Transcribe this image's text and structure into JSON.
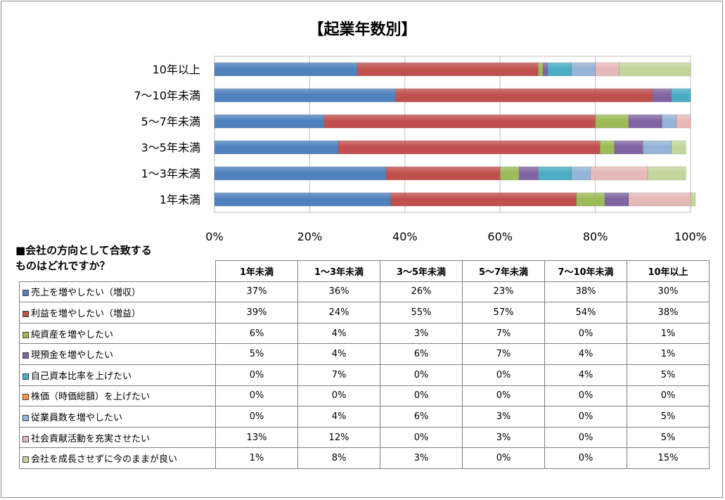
{
  "chart_data": {
    "type": "bar",
    "orientation": "horizontal",
    "stacked": true,
    "title": "【起業年数別】",
    "categories": [
      "1年未満",
      "1〜3年未満",
      "3〜5年未満",
      "5〜7年未満",
      "7〜10年未満",
      "10年以上"
    ],
    "x_ticks": [
      "0%",
      "20%",
      "40%",
      "60%",
      "80%",
      "100%"
    ],
    "xlim": [
      0,
      100
    ],
    "grid": true,
    "series": [
      {
        "name": "売上を増やしたい（増収）",
        "color": "#4f81bd",
        "values": [
          37,
          36,
          26,
          23,
          38,
          30
        ]
      },
      {
        "name": "利益を増やしたい（増益）",
        "color": "#c0504d",
        "values": [
          39,
          24,
          55,
          57,
          54,
          38
        ]
      },
      {
        "name": "純資産を増やしたい",
        "color": "#9bbb59",
        "values": [
          6,
          4,
          3,
          7,
          0,
          1
        ]
      },
      {
        "name": "現預金を増やしたい",
        "color": "#8064a2",
        "values": [
          5,
          4,
          6,
          7,
          4,
          1
        ]
      },
      {
        "name": "自己資本比率を上げたい",
        "color": "#4bacc6",
        "values": [
          0,
          7,
          0,
          0,
          4,
          5
        ]
      },
      {
        "name": "株価（時価総額）を上げたい",
        "color": "#f79646",
        "values": [
          0,
          0,
          0,
          0,
          0,
          0
        ]
      },
      {
        "name": "従業員数を増やしたい",
        "color": "#95b3d7",
        "values": [
          0,
          4,
          6,
          3,
          0,
          5
        ]
      },
      {
        "name": "社会貢献活動を充実させたい",
        "color": "#e6b9b8",
        "values": [
          13,
          12,
          0,
          3,
          0,
          5
        ]
      },
      {
        "name": "会社を成長させずに今のままが良い",
        "color": "#c3d69b",
        "values": [
          1,
          8,
          3,
          0,
          0,
          15
        ]
      }
    ]
  },
  "table": {
    "question_line1": "■会社の方向として合致する",
    "question_line2": "ものはどれですか？",
    "columns": [
      "1年未満",
      "1〜3年未満",
      "3〜5年未満",
      "5〜7年未満",
      "7〜10年未満",
      "10年以上"
    ],
    "rows": [
      {
        "label": "売上を増やしたい（増収）",
        "color": "#4f81bd",
        "values": [
          "37%",
          "36%",
          "26%",
          "23%",
          "38%",
          "30%"
        ]
      },
      {
        "label": "利益を増やしたい（増益）",
        "color": "#c0504d",
        "values": [
          "39%",
          "24%",
          "55%",
          "57%",
          "54%",
          "38%"
        ]
      },
      {
        "label": "純資産を増やしたい",
        "color": "#9bbb59",
        "values": [
          "6%",
          "4%",
          "3%",
          "7%",
          "0%",
          "1%"
        ]
      },
      {
        "label": "現預金を増やしたい",
        "color": "#8064a2",
        "values": [
          "5%",
          "4%",
          "6%",
          "7%",
          "4%",
          "1%"
        ]
      },
      {
        "label": "自己資本比率を上げたい",
        "color": "#4bacc6",
        "values": [
          "0%",
          "7%",
          "0%",
          "0%",
          "4%",
          "5%"
        ]
      },
      {
        "label": "株価（時価総額）を上げたい",
        "color": "#f79646",
        "values": [
          "0%",
          "0%",
          "0%",
          "0%",
          "0%",
          "0%"
        ]
      },
      {
        "label": "従業員数を増やしたい",
        "color": "#95b3d7",
        "values": [
          "0%",
          "4%",
          "6%",
          "3%",
          "0%",
          "5%"
        ]
      },
      {
        "label": "社会貢献活動を充実させたい",
        "color": "#e6b9b8",
        "values": [
          "13%",
          "12%",
          "0%",
          "3%",
          "0%",
          "5%"
        ]
      },
      {
        "label": "会社を成長させずに今のままが良い",
        "color": "#c3d69b",
        "values": [
          "1%",
          "8%",
          "3%",
          "0%",
          "0%",
          "15%"
        ]
      }
    ]
  }
}
